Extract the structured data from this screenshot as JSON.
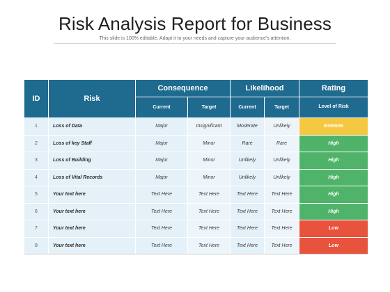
{
  "slide": {
    "title": "Risk Analysis Report for Business",
    "subtitle": "This slide is 100% editable. Adapt it to your needs and capture your audience's attention."
  },
  "table": {
    "headers": {
      "id": "ID",
      "risk": "Risk",
      "consequence": "Consequence",
      "likelihood": "Likelihood",
      "rating": "Rating",
      "current": "Current",
      "target": "Target",
      "level_of_risk": "Level of Risk"
    },
    "rows": [
      {
        "id": "1",
        "risk": "Loss  of Data",
        "c_current": "Major",
        "c_target": "Insignificant",
        "l_current": "Moderate",
        "l_target": "Unlikely",
        "rating": "Extreme",
        "color": "#f5c842"
      },
      {
        "id": "2",
        "risk": "Loss  of key Staff",
        "c_current": "Major",
        "c_target": "Minor",
        "l_current": "Rare",
        "l_target": "Rare",
        "rating": "High",
        "color": "#4fb36a"
      },
      {
        "id": "3",
        "risk": "Loss  of Building",
        "c_current": "Major",
        "c_target": "Minor",
        "l_current": "Unlikely",
        "l_target": "Unlikely",
        "rating": "High",
        "color": "#4fb36a"
      },
      {
        "id": "4",
        "risk": "Loss  of Vital Records",
        "c_current": "Major",
        "c_target": "Minor",
        "l_current": "Unlikely",
        "l_target": "Unlikely",
        "rating": "High",
        "color": "#4fb36a"
      },
      {
        "id": "5",
        "risk": "Your text here",
        "c_current": "Text Here",
        "c_target": "Text Here",
        "l_current": "Text Here",
        "l_target": "Text Here",
        "rating": "High",
        "color": "#4fb36a"
      },
      {
        "id": "6",
        "risk": "Your text here",
        "c_current": "Text Here",
        "c_target": "Text Here",
        "l_current": "Text Here",
        "l_target": "Text Here",
        "rating": "High",
        "color": "#4fb36a"
      },
      {
        "id": "7",
        "risk": "Your text here",
        "c_current": "Text Here",
        "c_target": "Text Here",
        "l_current": "Text Here",
        "l_target": "Text Here",
        "rating": "Low",
        "color": "#e8533e"
      },
      {
        "id": "8",
        "risk": "Your text here",
        "c_current": "Text Here",
        "c_target": "Text Here",
        "l_current": "Text Here",
        "l_target": "Text Here",
        "rating": "Low",
        "color": "#e8533e"
      }
    ]
  },
  "colors": {
    "header_bg": "#1f6a8f",
    "extreme": "#f5c842",
    "high": "#4fb36a",
    "low": "#e8533e"
  }
}
